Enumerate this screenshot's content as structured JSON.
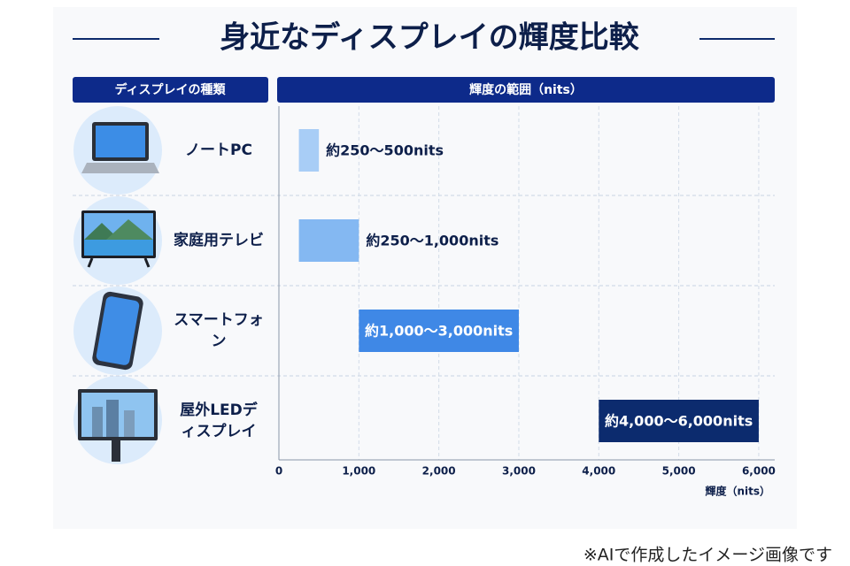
{
  "chart_data": {
    "type": "range-bar",
    "title": "身近なディスプレイの輝度比較",
    "category_header": "ディスプレイの種類",
    "value_header": "輝度の範囲（nits）",
    "categories": [
      "ノートPC",
      "家庭用テレビ",
      "スマートフォン",
      "屋外LEDディスプレイ"
    ],
    "low": [
      250,
      250,
      1000,
      4000
    ],
    "high": [
      500,
      1000,
      3000,
      6000
    ],
    "value_labels": [
      "約250～500nits",
      "約250～1,000nits",
      "約1,000～3,000nits",
      "約4,000～6,000nits"
    ],
    "colors": [
      "#a8cdf6",
      "#84b8f2",
      "#3f88e6",
      "#0c2b6e"
    ],
    "label_colors": [
      "#0d1f4a",
      "#0d1f4a",
      "#ffffff",
      "#ffffff"
    ],
    "xlim": [
      0,
      6200
    ],
    "xticks": [
      0,
      {
        "value": 1000,
        "label": "1,000"
      },
      {
        "value": 2000,
        "label": "2,000"
      },
      {
        "value": 3000,
        "label": "3,000"
      },
      {
        "value": 4000,
        "label": "4,000"
      },
      {
        "value": 5000,
        "label": "5,000"
      },
      {
        "value": 6000,
        "label": "6,000"
      }
    ],
    "xlabel": "輝度（nits）",
    "grid": true,
    "footnote": "※AIで作成したイメージ画像です"
  }
}
